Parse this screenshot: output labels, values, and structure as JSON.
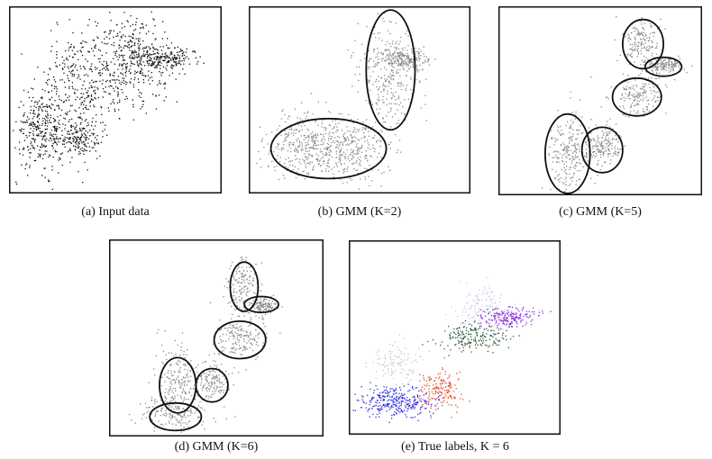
{
  "figure": {
    "panels": [
      {
        "id": "a",
        "caption": "(a) Input data",
        "chart_data": {
          "type": "scatter",
          "xlim": [
            0,
            100
          ],
          "ylim": [
            0,
            100
          ],
          "point_color": "#111111",
          "clusters": [
            {
              "cx": 15,
              "cy": 34,
              "sx": 6,
              "sy": 10,
              "n": 320
            },
            {
              "cx": 33,
              "cy": 30,
              "sx": 5,
              "sy": 5,
              "n": 180
            },
            {
              "cx": 32,
              "cy": 60,
              "sx": 9,
              "sy": 16,
              "n": 260
            },
            {
              "cx": 55,
              "cy": 62,
              "sx": 11,
              "sy": 9,
              "n": 220
            },
            {
              "cx": 58,
              "cy": 78,
              "sx": 9,
              "sy": 9,
              "n": 220
            },
            {
              "cx": 73,
              "cy": 73,
              "sx": 8,
              "sy": 3,
              "n": 200
            }
          ]
        }
      },
      {
        "id": "b",
        "caption": "(b) GMM (K=2)",
        "chart_data": {
          "type": "scatter",
          "xlim": [
            0,
            100
          ],
          "ylim": [
            0,
            100
          ],
          "point_color": "#8a8a8a",
          "clusters": [
            {
              "cx": 28,
              "cy": 25,
              "sx": 10,
              "sy": 9,
              "n": 420
            },
            {
              "cx": 48,
              "cy": 24,
              "sx": 8,
              "sy": 8,
              "n": 220
            },
            {
              "cx": 62,
              "cy": 62,
              "sx": 7,
              "sy": 14,
              "n": 300
            },
            {
              "cx": 70,
              "cy": 72,
              "sx": 6,
              "sy": 2.5,
              "n": 200
            }
          ],
          "ellipses": [
            {
              "cx": 36,
              "cy": 24,
              "rx": 26,
              "ry": 16
            },
            {
              "cx": 64,
              "cy": 66,
              "rx": 11,
              "ry": 32
            }
          ]
        }
      },
      {
        "id": "c",
        "caption": "(c) GMM (K=5)",
        "chart_data": {
          "type": "scatter",
          "xlim": [
            0,
            100
          ],
          "ylim": [
            0,
            100
          ],
          "point_color": "#8a8a8a",
          "clusters": [
            {
              "cx": 34,
              "cy": 22,
              "sx": 5,
              "sy": 11,
              "n": 240
            },
            {
              "cx": 51,
              "cy": 26,
              "sx": 5,
              "sy": 6,
              "n": 180
            },
            {
              "cx": 68,
              "cy": 54,
              "sx": 7,
              "sy": 5,
              "n": 170
            },
            {
              "cx": 70,
              "cy": 81,
              "sx": 5,
              "sy": 7,
              "n": 170
            },
            {
              "cx": 81,
              "cy": 69,
              "sx": 5,
              "sy": 2,
              "n": 150
            }
          ],
          "ellipses": [
            {
              "cx": 34,
              "cy": 22,
              "rx": 11,
              "ry": 21
            },
            {
              "cx": 51,
              "cy": 24,
              "rx": 10,
              "ry": 12
            },
            {
              "cx": 68,
              "cy": 52,
              "rx": 12,
              "ry": 10
            },
            {
              "cx": 71,
              "cy": 80,
              "rx": 10,
              "ry": 13
            },
            {
              "cx": 81,
              "cy": 68,
              "rx": 9,
              "ry": 5
            }
          ]
        }
      },
      {
        "id": "d",
        "caption": "(d) GMM (K=6)",
        "chart_data": {
          "type": "scatter",
          "xlim": [
            0,
            100
          ],
          "ylim": [
            0,
            100
          ],
          "point_color": "#8a8a8a",
          "clusters": [
            {
              "cx": 32,
              "cy": 28,
              "sx": 5,
              "sy": 10,
              "n": 200
            },
            {
              "cx": 30,
              "cy": 12,
              "sx": 8,
              "sy": 4,
              "n": 160
            },
            {
              "cx": 48,
              "cy": 28,
              "sx": 4,
              "sy": 5,
              "n": 150
            },
            {
              "cx": 61,
              "cy": 50,
              "sx": 6,
              "sy": 5,
              "n": 170
            },
            {
              "cx": 62,
              "cy": 76,
              "sx": 4,
              "sy": 8,
              "n": 160
            },
            {
              "cx": 71,
              "cy": 67,
              "sx": 4,
              "sy": 2,
              "n": 140
            }
          ],
          "ellipses": [
            {
              "cx": 32,
              "cy": 26,
              "rx": 8.5,
              "ry": 14
            },
            {
              "cx": 31,
              "cy": 10,
              "rx": 12,
              "ry": 7
            },
            {
              "cx": 48,
              "cy": 26,
              "rx": 7.5,
              "ry": 8.5
            },
            {
              "cx": 61,
              "cy": 49,
              "rx": 12,
              "ry": 9.5
            },
            {
              "cx": 63,
              "cy": 76,
              "rx": 6.5,
              "ry": 12.5
            },
            {
              "cx": 71,
              "cy": 67,
              "rx": 8,
              "ry": 4
            }
          ]
        }
      },
      {
        "id": "e",
        "caption": "(e) True labels, K = 6",
        "chart_data": {
          "type": "scatter",
          "xlim": [
            0,
            100
          ],
          "ylim": [
            0,
            100
          ],
          "clusters": [
            {
              "cx": 22,
              "cy": 17,
              "sx": 9,
              "sy": 4,
              "n": 300,
              "color": "#2a2ae6"
            },
            {
              "cx": 22,
              "cy": 37,
              "sx": 6,
              "sy": 6,
              "n": 110,
              "color": "#c8c8c8"
            },
            {
              "cx": 42,
              "cy": 23,
              "sx": 6,
              "sy": 5,
              "n": 170,
              "color": "#e0502e"
            },
            {
              "cx": 59,
              "cy": 51,
              "sx": 9,
              "sy": 3.5,
              "n": 200,
              "color": "#2c5a3a"
            },
            {
              "cx": 64,
              "cy": 66,
              "sx": 6,
              "sy": 6,
              "n": 140,
              "color": "#c9cdea"
            },
            {
              "cx": 75,
              "cy": 61,
              "sx": 7,
              "sy": 2.5,
              "n": 180,
              "color": "#8a2be2"
            }
          ]
        }
      }
    ]
  }
}
